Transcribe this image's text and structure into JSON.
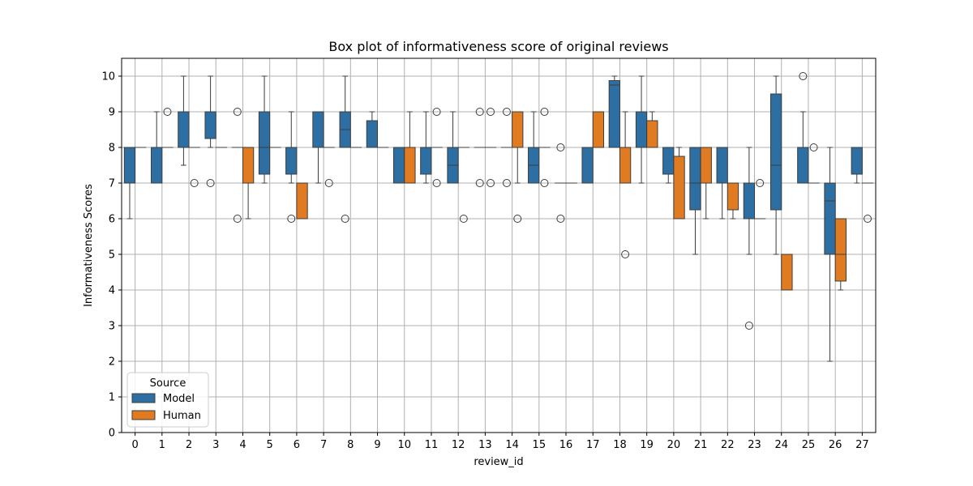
{
  "chart_data": {
    "type": "box",
    "title": "Box plot of informativeness score of original reviews",
    "xlabel": "review_id",
    "ylabel": "Informativeness Scores",
    "categories": [
      "0",
      "1",
      "2",
      "3",
      "4",
      "5",
      "6",
      "7",
      "8",
      "9",
      "10",
      "11",
      "12",
      "13",
      "14",
      "15",
      "16",
      "17",
      "18",
      "19",
      "20",
      "21",
      "22",
      "23",
      "24",
      "25",
      "26",
      "27"
    ],
    "ylim": [
      0,
      10.5
    ],
    "yticks": [
      0,
      1,
      2,
      3,
      4,
      5,
      6,
      7,
      8,
      9,
      10
    ],
    "grid": true,
    "legend": {
      "title": "Source",
      "placement": "lower-left"
    },
    "series": [
      {
        "name": "Model",
        "color": "#2e6fa3",
        "boxes": [
          {
            "q1": 7,
            "median": 8,
            "q3": 8,
            "whislo": 6,
            "whishi": 8,
            "fliers": []
          },
          {
            "q1": 7,
            "median": 8,
            "q3": 8,
            "whislo": 7,
            "whishi": 9,
            "fliers": []
          },
          {
            "q1": 8,
            "median": 8,
            "q3": 9,
            "whislo": 7.5,
            "whishi": 10,
            "fliers": []
          },
          {
            "q1": 8.25,
            "median": 9,
            "q3": 9,
            "whislo": 8,
            "whishi": 10,
            "fliers": [
              7
            ]
          },
          {
            "q1": 8,
            "median": 8,
            "q3": 8,
            "whislo": 8,
            "whishi": 8,
            "fliers": [
              9,
              6
            ]
          },
          {
            "q1": 7.25,
            "median": 8,
            "q3": 9,
            "whislo": 7,
            "whishi": 10,
            "fliers": []
          },
          {
            "q1": 7.25,
            "median": 8,
            "q3": 8,
            "whislo": 7,
            "whishi": 9,
            "fliers": [
              6
            ]
          },
          {
            "q1": 8,
            "median": 9,
            "q3": 9,
            "whislo": 7,
            "whishi": 9,
            "fliers": []
          },
          {
            "q1": 8,
            "median": 8.5,
            "q3": 9,
            "whislo": 8,
            "whishi": 10,
            "fliers": [
              6
            ]
          },
          {
            "q1": 8,
            "median": 8,
            "q3": 8.75,
            "whislo": 8,
            "whishi": 9,
            "fliers": []
          },
          {
            "q1": 7,
            "median": 7,
            "q3": 8,
            "whislo": 7,
            "whishi": 8,
            "fliers": []
          },
          {
            "q1": 7.25,
            "median": 8,
            "q3": 8,
            "whislo": 7,
            "whishi": 9,
            "fliers": []
          },
          {
            "q1": 7,
            "median": 7.5,
            "q3": 8,
            "whislo": 7,
            "whishi": 9,
            "fliers": []
          },
          {
            "q1": 8,
            "median": 8,
            "q3": 8,
            "whislo": 8,
            "whishi": 8,
            "fliers": [
              9,
              7
            ]
          },
          {
            "q1": 8,
            "median": 8,
            "q3": 8,
            "whislo": 8,
            "whishi": 8,
            "fliers": [
              9,
              7
            ]
          },
          {
            "q1": 7,
            "median": 7.5,
            "q3": 8,
            "whislo": 7,
            "whishi": 9,
            "fliers": []
          },
          {
            "q1": 7,
            "median": 7,
            "q3": 7,
            "whislo": 7,
            "whishi": 7,
            "fliers": [
              8,
              6
            ]
          },
          {
            "q1": 7,
            "median": 7,
            "q3": 8,
            "whislo": 7,
            "whishi": 8,
            "fliers": []
          },
          {
            "q1": 8,
            "median": 9.75,
            "q3": 9.875,
            "whislo": 8,
            "whishi": 10,
            "fliers": []
          },
          {
            "q1": 8,
            "median": 9,
            "q3": 9,
            "whislo": 7,
            "whishi": 10,
            "fliers": []
          },
          {
            "q1": 7.25,
            "median": 8,
            "q3": 8,
            "whislo": 7,
            "whishi": 8,
            "fliers": []
          },
          {
            "q1": 6.25,
            "median": 7,
            "q3": 8,
            "whislo": 5,
            "whishi": 8,
            "fliers": []
          },
          {
            "q1": 7,
            "median": 7,
            "q3": 8,
            "whislo": 6,
            "whishi": 8,
            "fliers": []
          },
          {
            "q1": 6,
            "median": 7,
            "q3": 7,
            "whislo": 5,
            "whishi": 8,
            "fliers": [
              3
            ]
          },
          {
            "q1": 6.25,
            "median": 7.5,
            "q3": 9.5,
            "whislo": 5,
            "whishi": 10,
            "fliers": []
          },
          {
            "q1": 7,
            "median": 7,
            "q3": 8,
            "whislo": 7,
            "whishi": 9,
            "fliers": [
              10
            ]
          },
          {
            "q1": 5,
            "median": 6.5,
            "q3": 7,
            "whislo": 2,
            "whishi": 8,
            "fliers": []
          },
          {
            "q1": 7.25,
            "median": 8,
            "q3": 8,
            "whislo": 7,
            "whishi": 8,
            "fliers": []
          }
        ]
      },
      {
        "name": "Human",
        "color": "#e07b22",
        "boxes": [
          {
            "q1": 8,
            "median": 8,
            "q3": 8,
            "whislo": 8,
            "whishi": 8,
            "fliers": []
          },
          {
            "q1": 8,
            "median": 8,
            "q3": 8,
            "whislo": 8,
            "whishi": 8,
            "fliers": [
              9
            ]
          },
          {
            "q1": 8,
            "median": 8,
            "q3": 8,
            "whislo": 8,
            "whishi": 8,
            "fliers": [
              7
            ]
          },
          {
            "q1": 8,
            "median": 8,
            "q3": 8,
            "whislo": 8,
            "whishi": 8,
            "fliers": []
          },
          {
            "q1": 7,
            "median": 8,
            "q3": 8,
            "whislo": 6,
            "whishi": 8,
            "fliers": []
          },
          {
            "q1": 8,
            "median": 8,
            "q3": 8,
            "whislo": 8,
            "whishi": 8,
            "fliers": []
          },
          {
            "q1": 6,
            "median": 6,
            "q3": 7,
            "whislo": 6,
            "whishi": 7,
            "fliers": []
          },
          {
            "q1": 8,
            "median": 8,
            "q3": 8,
            "whislo": 8,
            "whishi": 8,
            "fliers": [
              7
            ]
          },
          {
            "q1": 8,
            "median": 8,
            "q3": 8,
            "whislo": 8,
            "whishi": 8,
            "fliers": []
          },
          {
            "q1": 8,
            "median": 8,
            "q3": 8,
            "whislo": 8,
            "whishi": 8,
            "fliers": []
          },
          {
            "q1": 7,
            "median": 7,
            "q3": 8,
            "whislo": 7,
            "whishi": 9,
            "fliers": []
          },
          {
            "q1": 8,
            "median": 8,
            "q3": 8,
            "whislo": 8,
            "whishi": 8,
            "fliers": [
              9,
              7
            ]
          },
          {
            "q1": 8,
            "median": 8,
            "q3": 8,
            "whislo": 8,
            "whishi": 8,
            "fliers": [
              6
            ]
          },
          {
            "q1": 8,
            "median": 8,
            "q3": 8,
            "whislo": 8,
            "whishi": 8,
            "fliers": [
              9,
              7
            ]
          },
          {
            "q1": 8,
            "median": 9,
            "q3": 9,
            "whislo": 7,
            "whishi": 9,
            "fliers": [
              6
            ]
          },
          {
            "q1": 8,
            "median": 8,
            "q3": 8,
            "whislo": 8,
            "whishi": 8,
            "fliers": [
              9,
              7
            ]
          },
          {
            "q1": 7,
            "median": 7,
            "q3": 7,
            "whislo": 7,
            "whishi": 7,
            "fliers": []
          },
          {
            "q1": 8,
            "median": 9,
            "q3": 9,
            "whislo": 8,
            "whishi": 9,
            "fliers": []
          },
          {
            "q1": 7,
            "median": 7,
            "q3": 8,
            "whislo": 7,
            "whishi": 9,
            "fliers": [
              5
            ]
          },
          {
            "q1": 8,
            "median": 8,
            "q3": 8.75,
            "whislo": 8,
            "whishi": 9,
            "fliers": []
          },
          {
            "q1": 6,
            "median": 6,
            "q3": 7.75,
            "whislo": 6,
            "whishi": 8,
            "fliers": []
          },
          {
            "q1": 7,
            "median": 8,
            "q3": 8,
            "whislo": 6,
            "whishi": 8,
            "fliers": []
          },
          {
            "q1": 6.25,
            "median": 7,
            "q3": 7,
            "whislo": 6,
            "whishi": 7,
            "fliers": []
          },
          {
            "q1": 6,
            "median": 6,
            "q3": 6,
            "whislo": 6,
            "whishi": 6,
            "fliers": [
              7
            ]
          },
          {
            "q1": 4,
            "median": 4,
            "q3": 5,
            "whislo": 4,
            "whishi": 5,
            "fliers": []
          },
          {
            "q1": 7,
            "median": 7,
            "q3": 7,
            "whislo": 7,
            "whishi": 7,
            "fliers": [
              8
            ]
          },
          {
            "q1": 4.25,
            "median": 5,
            "q3": 6,
            "whislo": 4,
            "whishi": 6,
            "fliers": []
          },
          {
            "q1": 7,
            "median": 7,
            "q3": 7,
            "whislo": 7,
            "whishi": 7,
            "fliers": [
              6
            ]
          }
        ]
      }
    ]
  }
}
